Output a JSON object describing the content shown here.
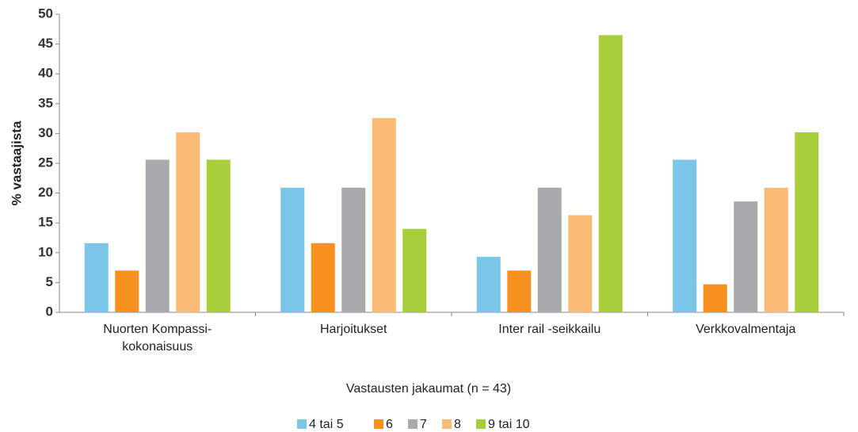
{
  "chart_data": {
    "type": "bar",
    "ylabel": "% vastaajista",
    "xlabel": "Vastausten jakaumat (n = 43)",
    "categories": [
      "Nuorten Kompassi-kokonaisuus",
      "Harjoitukset",
      "Inter rail -seikkailu",
      "Verkkovalmentaja"
    ],
    "series": [
      {
        "name": "4 tai 5",
        "color": "#7ac5e8",
        "values": [
          11.6,
          20.9,
          9.3,
          25.6
        ]
      },
      {
        "name": "6",
        "color": "#f7901e",
        "values": [
          7.0,
          11.6,
          7.0,
          4.7
        ]
      },
      {
        "name": "7",
        "color": "#a7a9ac",
        "values": [
          25.6,
          20.9,
          20.9,
          18.6
        ]
      },
      {
        "name": "8",
        "color": "#fbbb77",
        "values": [
          30.2,
          32.6,
          16.3,
          20.9
        ]
      },
      {
        "name": "9 tai 10",
        "color": "#a6ce39",
        "values": [
          25.6,
          14.0,
          46.5,
          30.2
        ]
      }
    ],
    "ylim": [
      0,
      50
    ],
    "yticks": [
      0,
      5,
      10,
      15,
      20,
      25,
      30,
      35,
      40,
      45,
      50
    ],
    "grid": false,
    "legend": "bottom"
  }
}
